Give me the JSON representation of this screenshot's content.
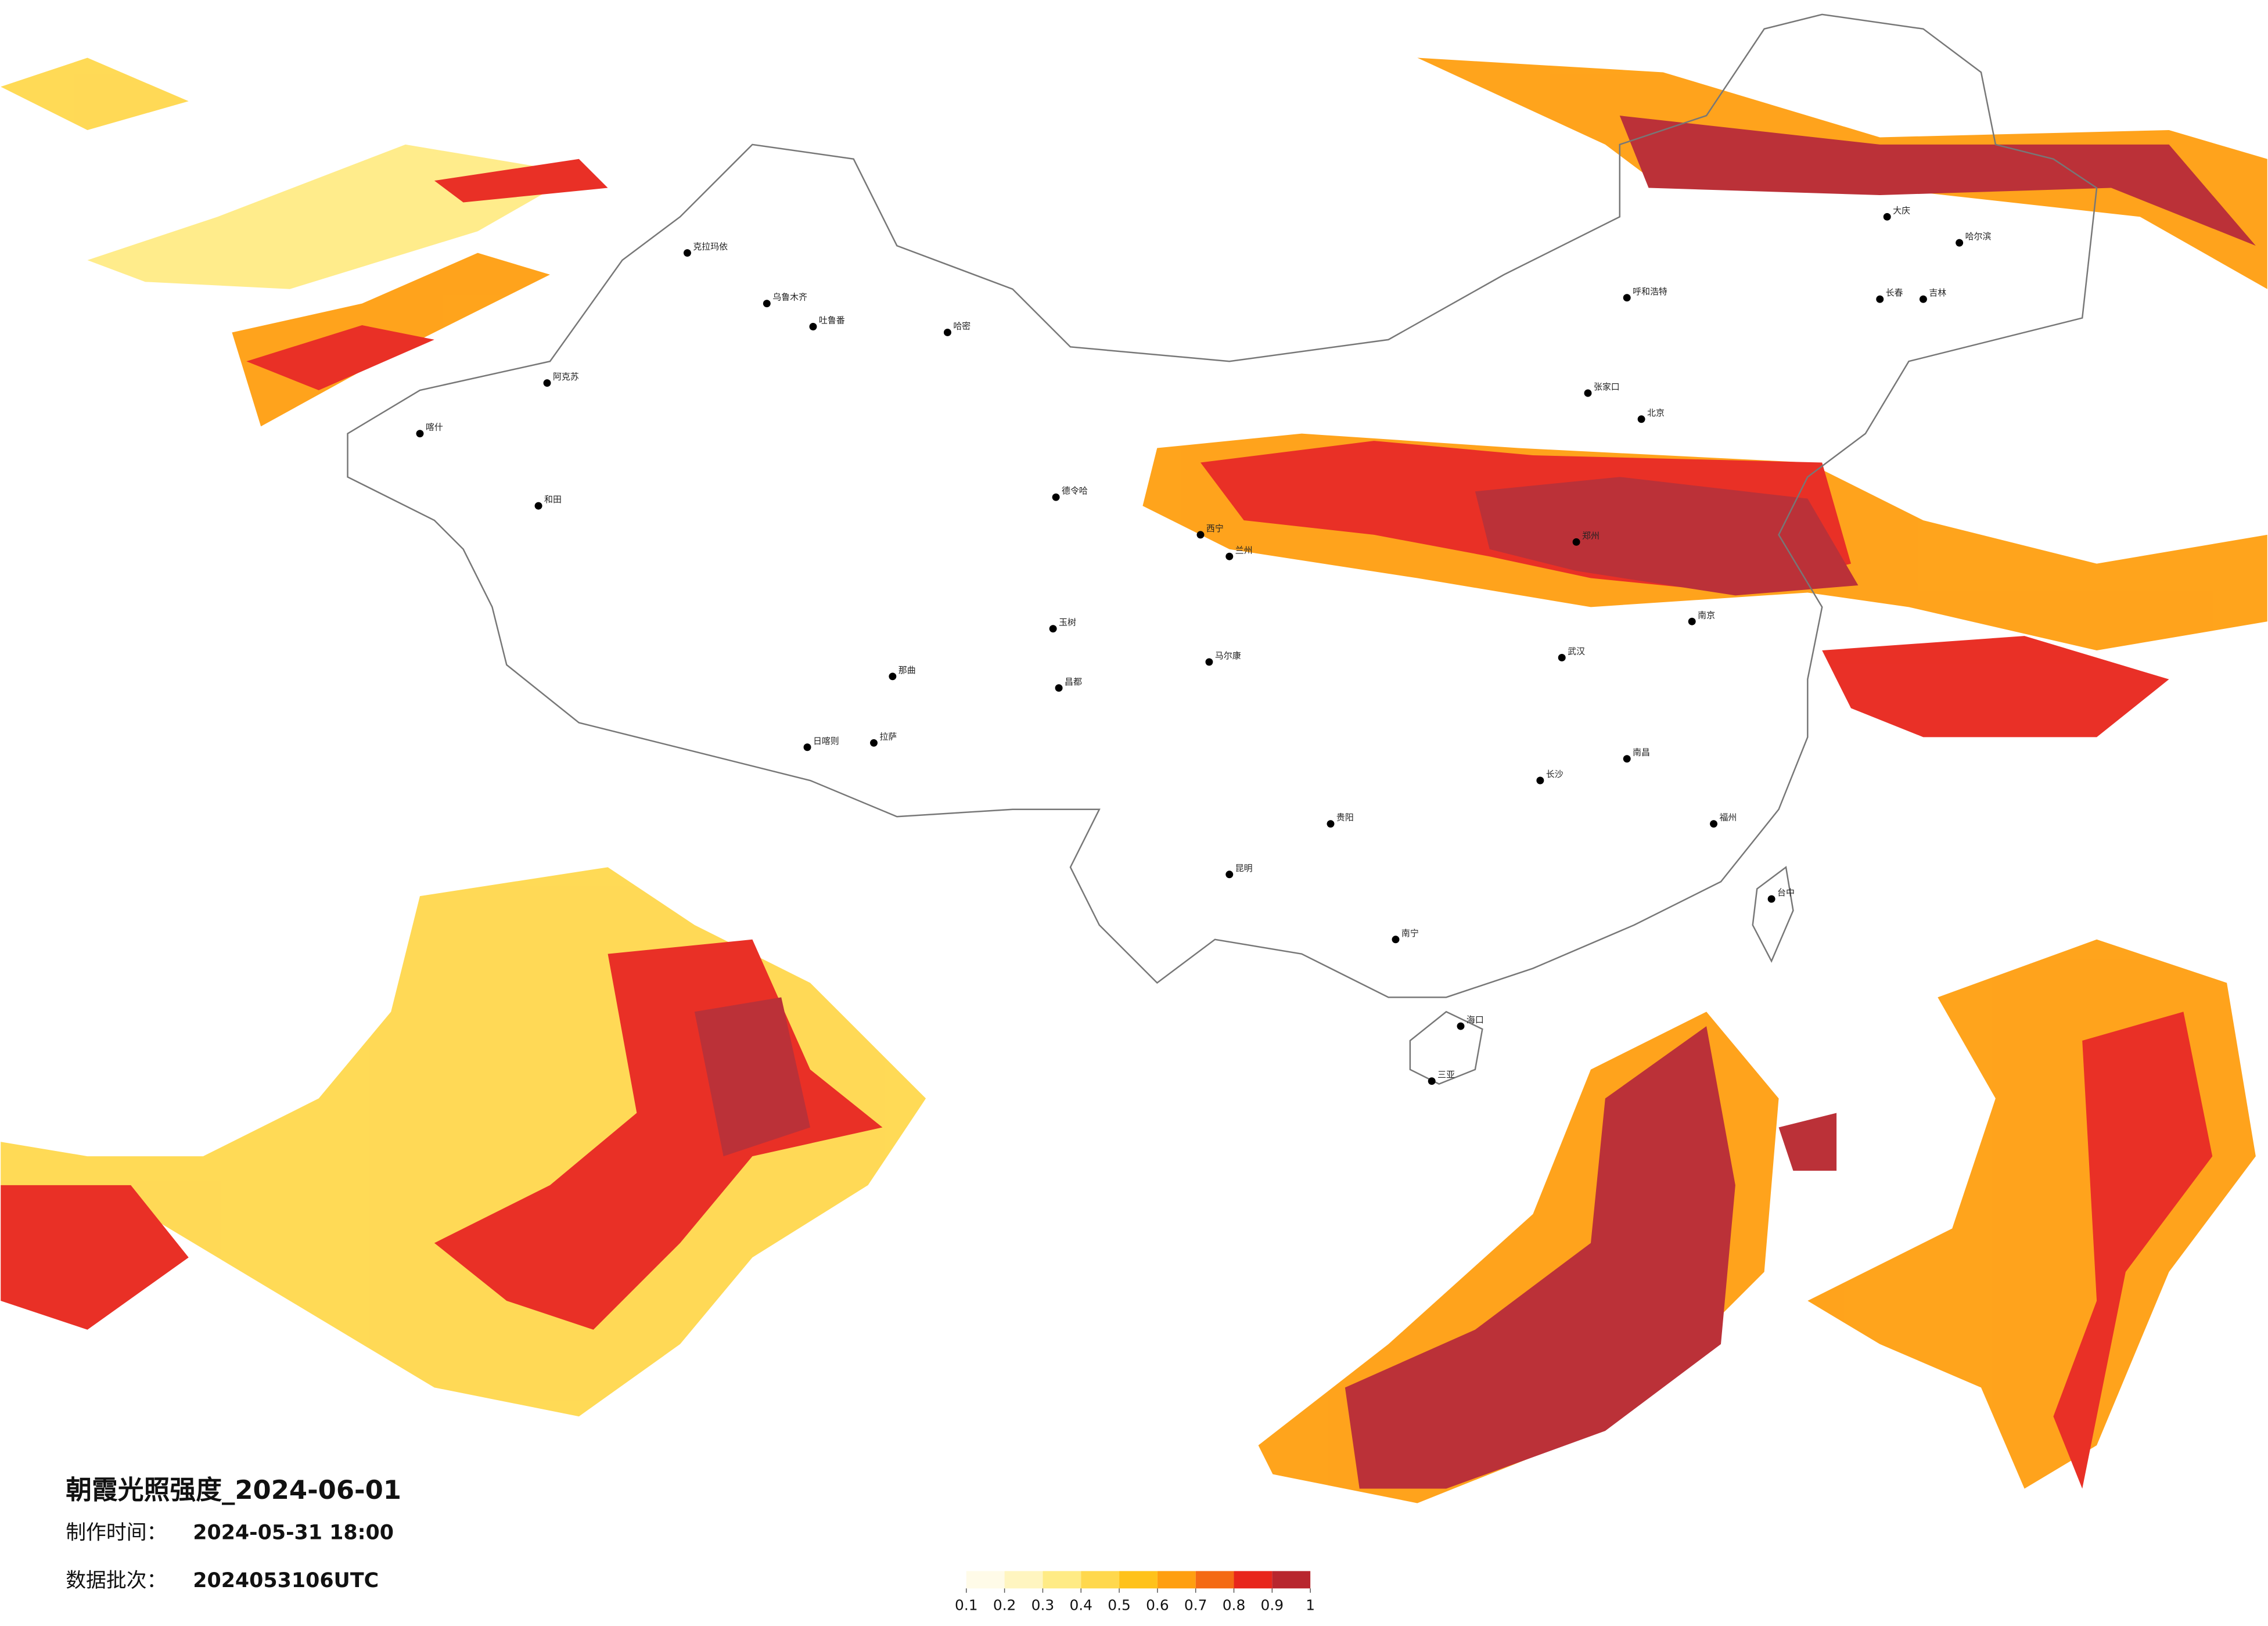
{
  "title": "朝霞光照强度_2024-06-01",
  "made_label": "制作时间：",
  "made_value": "2024-05-31 18:00",
  "batch_label": "数据批次：",
  "batch_value": "2024053106UTC",
  "colorbar": {
    "ticks": [
      0.1,
      0.2,
      0.3,
      0.4,
      0.5,
      0.6,
      0.7,
      0.8,
      0.9,
      1
    ],
    "colors": [
      "#fffbe8",
      "#fff5c0",
      "#ffeb85",
      "#ffd84d",
      "#ffc21a",
      "#ff9f10",
      "#f46a14",
      "#e8251b",
      "#b8262e"
    ]
  },
  "cities": [
    "克拉玛依",
    "乌鲁木齐",
    "吐鲁番",
    "哈密",
    "阿克苏",
    "和田",
    "喀什",
    "德令哈",
    "玉树",
    "昌都",
    "日喀则",
    "拉萨",
    "那曲",
    "马尔康",
    "呼和浩特",
    "张家口",
    "北京",
    "大庆",
    "哈尔滨",
    "长春",
    "吉林",
    "南宁",
    "海口",
    "三亚",
    "长沙",
    "南昌",
    "福州",
    "台中",
    "贵阳",
    "昆明",
    "西宁",
    "兰州",
    "郑州",
    "武汉",
    "南京"
  ]
}
